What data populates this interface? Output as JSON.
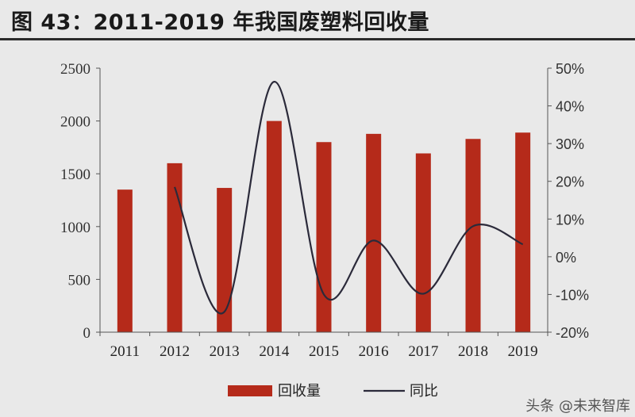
{
  "title": "图 43：2011-2019 年我国废塑料回收量",
  "watermark": "头条 @未来智库",
  "colors": {
    "bar": "#b52a1a",
    "line": "#2b2a3a",
    "axis": "#555555"
  },
  "chart_data": {
    "type": "bar",
    "categories": [
      "2011",
      "2012",
      "2013",
      "2014",
      "2015",
      "2016",
      "2017",
      "2018",
      "2019"
    ],
    "series": [
      {
        "name": "回收量",
        "type": "bar",
        "axis": "left",
        "values": [
          1350,
          1600,
          1366,
          2000,
          1800,
          1878,
          1693,
          1830,
          1890
        ]
      },
      {
        "name": "同比",
        "type": "line",
        "axis": "right",
        "values": [
          null,
          0.185,
          -0.146,
          0.464,
          -0.1,
          0.043,
          -0.098,
          0.081,
          0.033
        ]
      }
    ],
    "y_left": {
      "ylim": [
        0,
        2500
      ],
      "ticks": [
        0,
        500,
        1000,
        1500,
        2000,
        2500
      ],
      "tick_labels": [
        "0",
        "500",
        "1000",
        "1500",
        "2000",
        "2500"
      ]
    },
    "y_right": {
      "ylim": [
        -0.2,
        0.5
      ],
      "ticks": [
        -0.2,
        -0.1,
        0,
        0.1,
        0.2,
        0.3,
        0.4,
        0.5
      ],
      "tick_labels": [
        "-20%",
        "-10%",
        "0%",
        "10%",
        "20%",
        "30%",
        "40%",
        "50%"
      ]
    },
    "xlabel": "",
    "ylabel": "",
    "legend": {
      "position": "bottom",
      "entries": [
        "回收量",
        "同比"
      ]
    },
    "grid": false
  }
}
